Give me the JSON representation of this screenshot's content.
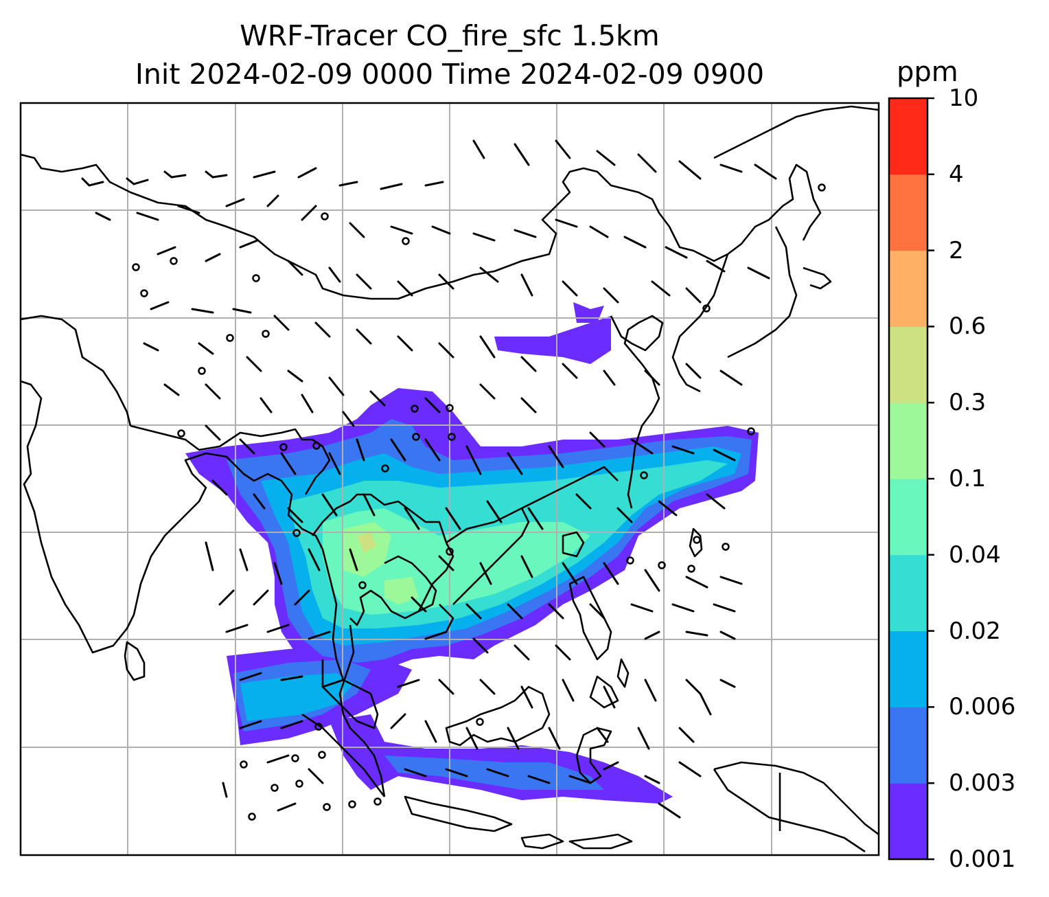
{
  "title_line1": "WRF-Tracer CO_fire_sfc 1.5km",
  "title_line2": "Init 2024-02-09 0000 Time 2024-02-09 0900",
  "colorbar": {
    "unit": "ppm",
    "levels": [
      "0.001",
      "0.003",
      "0.006",
      "0.02",
      "0.04",
      "0.1",
      "0.3",
      "0.6",
      "2",
      "4",
      "10"
    ],
    "colors": [
      "#6a2cff",
      "#3a76f2",
      "#06b0ec",
      "#35ddd2",
      "#6af7bd",
      "#9cf899",
      "#cde182",
      "#feb065",
      "#ff7340",
      "#ff2a17"
    ]
  },
  "map": {
    "graticule": "on",
    "background": "#ffffff",
    "coastline_color": "#000000",
    "features": [
      "coastlines",
      "wind-barbs",
      "calm-circles",
      "gridlines"
    ]
  }
}
